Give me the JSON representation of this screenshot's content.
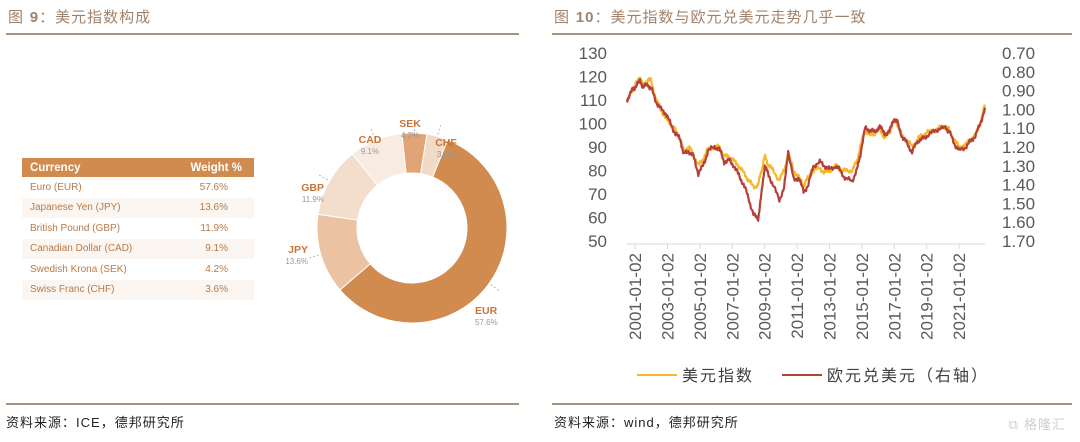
{
  "left_panel": {
    "title_prefix": "图",
    "title_number": "9",
    "title_text": "：美元指数构成",
    "source_prefix": "资料来源：",
    "source_en": "ICE",
    "source_suffix": "，德邦研究所"
  },
  "right_panel": {
    "title_prefix": "图",
    "title_number": "10",
    "title_text": "：美元指数与欧元兑美元走势几乎一致",
    "source_prefix": "资料来源：",
    "source_en": "wind",
    "source_suffix": "，德邦研究所",
    "watermark": "格隆汇"
  },
  "colors": {
    "accent": "#d28b4f",
    "title": "#a3826a",
    "rule": "#a8937e",
    "usd_index": "#f5b82a",
    "eurusd": "#b5413a"
  },
  "chart_data": [
    {
      "type": "table",
      "columns": [
        "Currency",
        "Weight %"
      ],
      "rows": [
        [
          "Euro (EUR)",
          "57.6%"
        ],
        [
          "Japanese Yen (JPY)",
          "13.6%"
        ],
        [
          "British Pound (GBP)",
          "11.9%"
        ],
        [
          "Canadian Dollar (CAD)",
          "9.1%"
        ],
        [
          "Swedish Krona (SEK)",
          "4.2%"
        ],
        [
          "Swiss Franc (CHF)",
          "3.6%"
        ]
      ]
    },
    {
      "type": "pie",
      "donut": true,
      "slices": [
        {
          "label": "EUR",
          "value": 57.6,
          "text": "57.6%",
          "color": "#d28b4f"
        },
        {
          "label": "JPY",
          "value": 13.6,
          "text": "13.6%",
          "color": "#ebc3a2"
        },
        {
          "label": "GBP",
          "value": 11.9,
          "text": "11.9%",
          "color": "#f3ddcb"
        },
        {
          "label": "CAD",
          "value": 9.1,
          "text": "9.1%",
          "color": "#f8ece2"
        },
        {
          "label": "SEK",
          "value": 4.2,
          "text": "4.2%",
          "color": "#e0a476"
        },
        {
          "label": "CHF",
          "value": 3.6,
          "text": "3.6%",
          "color": "#f3dac6"
        }
      ]
    },
    {
      "type": "line",
      "title": "美元指数与欧元兑美元走势几乎一致",
      "x_tick_labels": [
        "2001-01-02",
        "2003-01-02",
        "2005-01-02",
        "2007-01-02",
        "2009-01-02",
        "2011-01-02",
        "2013-01-02",
        "2015-01-02",
        "2017-01-02",
        "2019-01-02",
        "2021-01-02"
      ],
      "x_range": [
        2000.5,
        2022.6
      ],
      "y_left": {
        "range": [
          50,
          130
        ],
        "ticks": [
          130,
          120,
          110,
          100,
          90,
          80,
          70,
          60,
          50
        ]
      },
      "y_right": {
        "range": [
          0.7,
          1.7
        ],
        "inverted": true,
        "ticks": [
          "0.70",
          "0.80",
          "0.90",
          "1.00",
          "1.10",
          "1.20",
          "1.30",
          "1.40",
          "1.50",
          "1.60",
          "1.70"
        ]
      },
      "legend": {
        "position": "bottom",
        "entries": [
          "美元指数",
          "欧元兑美元（右轴）"
        ]
      },
      "series": [
        {
          "name": "美元指数",
          "axis": "left",
          "x": [
            2000.5,
            2000.8,
            2001.0,
            2001.3,
            2001.5,
            2001.8,
            2002.0,
            2002.3,
            2002.6,
            2002.9,
            2003.2,
            2003.5,
            2003.8,
            2004.0,
            2004.3,
            2004.6,
            2004.9,
            2005.2,
            2005.5,
            2005.9,
            2006.2,
            2006.5,
            2006.8,
            2007.1,
            2007.4,
            2007.7,
            2008.0,
            2008.3,
            2008.6,
            2008.8,
            2009.0,
            2009.2,
            2009.5,
            2009.9,
            2010.2,
            2010.45,
            2010.8,
            2011.1,
            2011.4,
            2011.7,
            2012.0,
            2012.4,
            2012.7,
            2013.0,
            2013.4,
            2013.7,
            2014.0,
            2014.4,
            2014.7,
            2014.9,
            2015.2,
            2015.5,
            2015.8,
            2016.1,
            2016.4,
            2016.7,
            2016.95,
            2017.2,
            2017.5,
            2017.8,
            2018.1,
            2018.4,
            2018.7,
            2019.0,
            2019.4,
            2019.8,
            2020.2,
            2020.4,
            2020.7,
            2021.0,
            2021.4,
            2021.7,
            2022.0,
            2022.3,
            2022.6
          ],
          "y": [
            109,
            114,
            116,
            120,
            116,
            119,
            118,
            110,
            106,
            102,
            100,
            97,
            93,
            88,
            90,
            87,
            82,
            85,
            89,
            90,
            90,
            86,
            86,
            84,
            82,
            79,
            76,
            73,
            74,
            80,
            86,
            83,
            80,
            76,
            80,
            87,
            80,
            77,
            74,
            77,
            80,
            81,
            79,
            80,
            82,
            80,
            80,
            80,
            84,
            90,
            97,
            95,
            96,
            98,
            94,
            96,
            101,
            100,
            94,
            93,
            90,
            93,
            95,
            96,
            97,
            98,
            99,
            97,
            93,
            90,
            91,
            93,
            95,
            100,
            108
          ]
        },
        {
          "name": "欧元兑美元（右轴）",
          "axis": "right",
          "x": [
            2000.5,
            2000.8,
            2001.0,
            2001.3,
            2001.5,
            2001.8,
            2002.0,
            2002.3,
            2002.6,
            2002.9,
            2003.2,
            2003.5,
            2003.8,
            2004.0,
            2004.3,
            2004.6,
            2004.9,
            2005.2,
            2005.5,
            2005.9,
            2006.2,
            2006.5,
            2006.8,
            2007.1,
            2007.4,
            2007.7,
            2008.0,
            2008.3,
            2008.6,
            2008.8,
            2009.0,
            2009.2,
            2009.5,
            2009.9,
            2010.2,
            2010.45,
            2010.8,
            2011.1,
            2011.4,
            2011.7,
            2012.0,
            2012.4,
            2012.7,
            2013.0,
            2013.4,
            2013.7,
            2014.0,
            2014.4,
            2014.7,
            2014.9,
            2015.2,
            2015.5,
            2015.8,
            2016.1,
            2016.4,
            2016.7,
            2016.95,
            2017.2,
            2017.5,
            2017.8,
            2018.1,
            2018.4,
            2018.7,
            2019.0,
            2019.4,
            2019.8,
            2020.2,
            2020.4,
            2020.7,
            2021.0,
            2021.4,
            2021.7,
            2022.0,
            2022.3,
            2022.6
          ],
          "y": [
            0.95,
            0.9,
            0.88,
            0.85,
            0.88,
            0.87,
            0.89,
            0.96,
            1.0,
            1.02,
            1.08,
            1.13,
            1.16,
            1.24,
            1.22,
            1.25,
            1.34,
            1.3,
            1.22,
            1.2,
            1.21,
            1.28,
            1.27,
            1.3,
            1.35,
            1.4,
            1.47,
            1.56,
            1.58,
            1.45,
            1.3,
            1.34,
            1.4,
            1.48,
            1.42,
            1.22,
            1.38,
            1.36,
            1.44,
            1.4,
            1.3,
            1.28,
            1.3,
            1.32,
            1.3,
            1.33,
            1.37,
            1.38,
            1.32,
            1.24,
            1.1,
            1.11,
            1.12,
            1.09,
            1.13,
            1.12,
            1.05,
            1.07,
            1.15,
            1.18,
            1.23,
            1.17,
            1.16,
            1.14,
            1.12,
            1.1,
            1.1,
            1.12,
            1.18,
            1.22,
            1.2,
            1.17,
            1.14,
            1.08,
            0.99
          ]
        }
      ]
    }
  ]
}
